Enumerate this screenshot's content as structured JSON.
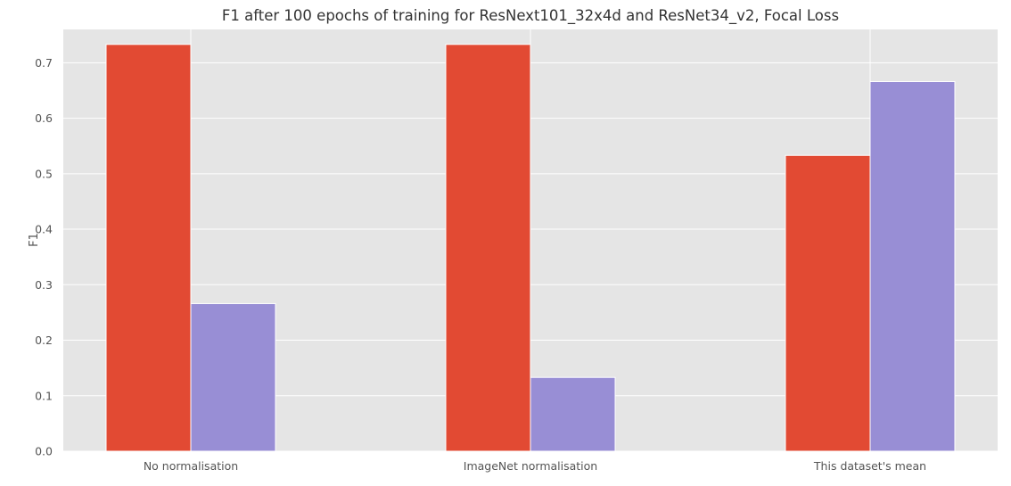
{
  "chart_data": {
    "type": "bar",
    "title": "F1 after 100 epochs of training for ResNext101_32x4d and ResNet34_v2, Focal Loss",
    "xlabel": "",
    "ylabel": "F1",
    "categories": [
      "No normalisation",
      "ImageNet normalisation",
      "This dataset's mean"
    ],
    "series": [
      {
        "values": [
          0.733,
          0.733,
          0.533
        ]
      },
      {
        "values": [
          0.266,
          0.133,
          0.666
        ]
      }
    ],
    "ylim": [
      0,
      0.76
    ],
    "yticks": [
      "0.0",
      "0.1",
      "0.2",
      "0.3",
      "0.4",
      "0.5",
      "0.6",
      "0.7"
    ],
    "grid": true,
    "legend": "none"
  },
  "colors": {
    "series": [
      "#E24A33",
      "#988ED5"
    ],
    "background": "#E5E5E5",
    "grid": "#FFFFFF"
  }
}
